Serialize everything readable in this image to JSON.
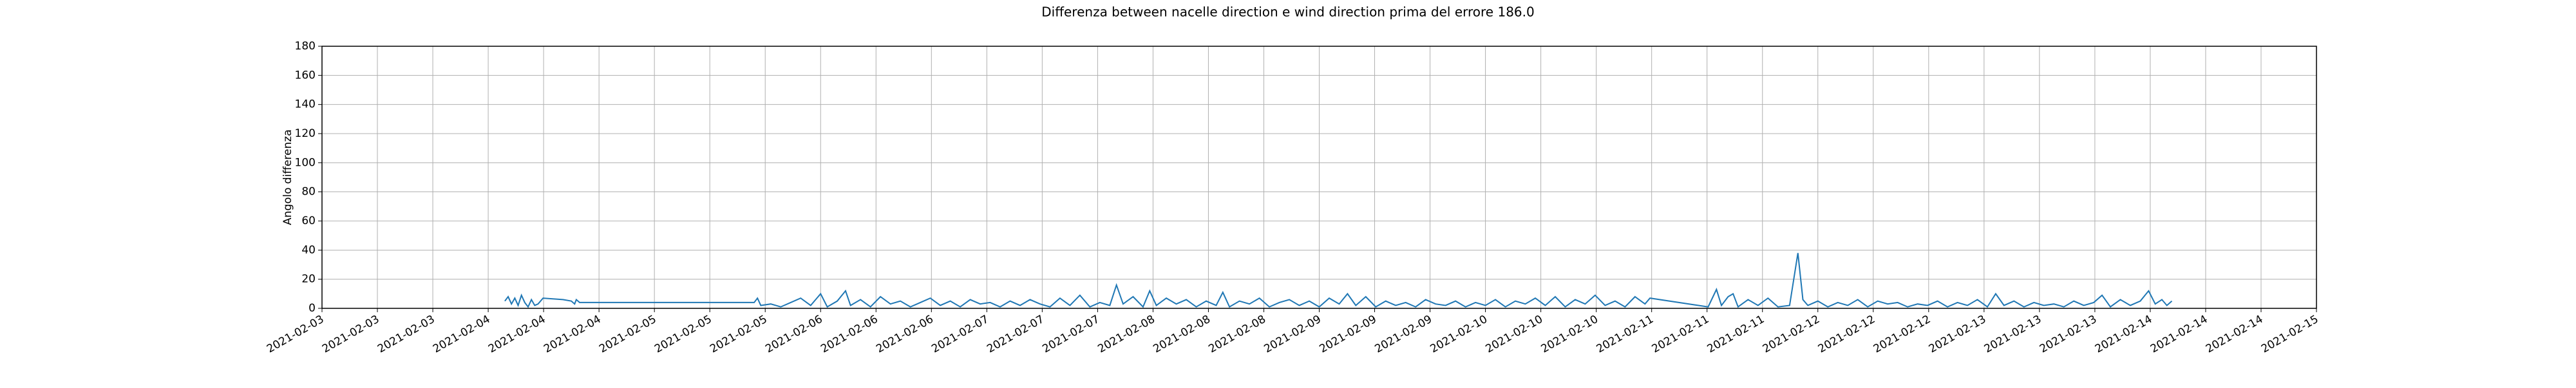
{
  "chart_data": {
    "type": "line",
    "title": "Differenza between nacelle direction e wind direction prima del errore 186.0",
    "ylabel": "Angolo differenza",
    "grid": true,
    "xlim": [
      3,
      15
    ],
    "ylim": [
      0,
      180
    ],
    "yticks": [
      0,
      20,
      40,
      60,
      80,
      100,
      120,
      140,
      160,
      180
    ],
    "xticks": [
      {
        "value": 3,
        "label": "2021-02-03"
      },
      {
        "value": 3.3333,
        "label": "2021-02-03"
      },
      {
        "value": 3.6667,
        "label": "2021-02-03"
      },
      {
        "value": 4,
        "label": "2021-02-04"
      },
      {
        "value": 4.3333,
        "label": "2021-02-04"
      },
      {
        "value": 4.6667,
        "label": "2021-02-04"
      },
      {
        "value": 5,
        "label": "2021-02-05"
      },
      {
        "value": 5.3333,
        "label": "2021-02-05"
      },
      {
        "value": 5.6667,
        "label": "2021-02-05"
      },
      {
        "value": 6,
        "label": "2021-02-06"
      },
      {
        "value": 6.3333,
        "label": "2021-02-06"
      },
      {
        "value": 6.6667,
        "label": "2021-02-06"
      },
      {
        "value": 7,
        "label": "2021-02-07"
      },
      {
        "value": 7.3333,
        "label": "2021-02-07"
      },
      {
        "value": 7.6667,
        "label": "2021-02-07"
      },
      {
        "value": 8,
        "label": "2021-02-08"
      },
      {
        "value": 8.3333,
        "label": "2021-02-08"
      },
      {
        "value": 8.6667,
        "label": "2021-02-08"
      },
      {
        "value": 9,
        "label": "2021-02-09"
      },
      {
        "value": 9.3333,
        "label": "2021-02-09"
      },
      {
        "value": 9.6667,
        "label": "2021-02-09"
      },
      {
        "value": 10,
        "label": "2021-02-10"
      },
      {
        "value": 10.3333,
        "label": "2021-02-10"
      },
      {
        "value": 10.6667,
        "label": "2021-02-10"
      },
      {
        "value": 11,
        "label": "2021-02-11"
      },
      {
        "value": 11.3333,
        "label": "2021-02-11"
      },
      {
        "value": 11.6667,
        "label": "2021-02-11"
      },
      {
        "value": 12,
        "label": "2021-02-12"
      },
      {
        "value": 12.3333,
        "label": "2021-02-12"
      },
      {
        "value": 12.6667,
        "label": "2021-02-12"
      },
      {
        "value": 13,
        "label": "2021-02-13"
      },
      {
        "value": 13.3333,
        "label": "2021-02-13"
      },
      {
        "value": 13.6667,
        "label": "2021-02-13"
      },
      {
        "value": 14,
        "label": "2021-02-14"
      },
      {
        "value": 14.3333,
        "label": "2021-02-14"
      },
      {
        "value": 14.6667,
        "label": "2021-02-14"
      },
      {
        "value": 15,
        "label": "2021-02-15"
      }
    ],
    "x": [
      4.1,
      4.12,
      4.14,
      4.16,
      4.18,
      4.2,
      4.22,
      4.24,
      4.26,
      4.28,
      4.3,
      4.33,
      4.45,
      4.5,
      4.52,
      4.53,
      4.55,
      5.6,
      5.62,
      5.64,
      5.7,
      5.76,
      5.82,
      5.88,
      5.94,
      6.0,
      6.04,
      6.1,
      6.15,
      6.18,
      6.24,
      6.3,
      6.36,
      6.42,
      6.48,
      6.54,
      6.6,
      6.66,
      6.72,
      6.78,
      6.84,
      6.9,
      6.96,
      7.02,
      7.08,
      7.14,
      7.2,
      7.26,
      7.32,
      7.38,
      7.44,
      7.5,
      7.56,
      7.62,
      7.68,
      7.74,
      7.78,
      7.82,
      7.88,
      7.94,
      7.98,
      8.02,
      8.08,
      8.14,
      8.2,
      8.26,
      8.32,
      8.38,
      8.42,
      8.46,
      8.52,
      8.58,
      8.64,
      8.7,
      8.76,
      8.82,
      8.88,
      8.94,
      9.0,
      9.06,
      9.12,
      9.17,
      9.22,
      9.28,
      9.34,
      9.4,
      9.46,
      9.52,
      9.58,
      9.64,
      9.7,
      9.76,
      9.82,
      9.88,
      9.94,
      10.0,
      10.06,
      10.12,
      10.18,
      10.24,
      10.3,
      10.36,
      10.42,
      10.48,
      10.54,
      10.6,
      10.66,
      10.72,
      10.78,
      10.84,
      10.9,
      10.96,
      10.99,
      11.34,
      11.39,
      11.42,
      11.46,
      11.49,
      11.52,
      11.58,
      11.64,
      11.7,
      11.76,
      11.83,
      11.88,
      11.91,
      11.94,
      12.0,
      12.06,
      12.12,
      12.18,
      12.24,
      12.3,
      12.36,
      12.42,
      12.48,
      12.54,
      12.6,
      12.66,
      12.72,
      12.78,
      12.84,
      12.9,
      12.96,
      13.02,
      13.07,
      13.12,
      13.18,
      13.24,
      13.3,
      13.36,
      13.42,
      13.48,
      13.54,
      13.6,
      13.66,
      13.71,
      13.76,
      13.82,
      13.88,
      13.94,
      13.99,
      14.03,
      14.07,
      14.1,
      14.13
    ],
    "series": [
      {
        "color": "#1f77b4",
        "values": [
          5,
          8,
          3,
          7,
          2,
          9,
          4,
          1,
          6,
          2,
          3,
          7,
          6,
          5,
          3,
          6,
          4,
          4,
          7,
          2,
          3,
          1,
          4,
          7,
          2,
          10,
          1,
          5,
          12,
          2,
          6,
          1,
          8,
          3,
          5,
          1,
          4,
          7,
          2,
          5,
          1,
          6,
          3,
          4,
          1,
          5,
          2,
          6,
          3,
          1,
          7,
          2,
          9,
          1,
          4,
          2,
          16,
          3,
          8,
          1,
          12,
          2,
          7,
          3,
          6,
          1,
          5,
          2,
          11,
          1,
          5,
          3,
          7,
          1,
          4,
          6,
          2,
          5,
          1,
          7,
          3,
          10,
          2,
          8,
          1,
          5,
          2,
          4,
          1,
          6,
          3,
          2,
          5,
          1,
          4,
          2,
          6,
          1,
          5,
          3,
          7,
          2,
          8,
          1,
          6,
          3,
          9,
          2,
          5,
          1,
          8,
          3,
          7,
          1,
          13,
          2,
          8,
          10,
          1,
          6,
          2,
          7,
          1,
          2,
          38,
          6,
          2,
          5,
          1,
          4,
          2,
          6,
          1,
          5,
          3,
          4,
          1,
          3,
          2,
          5,
          1,
          4,
          2,
          6,
          1,
          10,
          2,
          5,
          1,
          4,
          2,
          3,
          1,
          5,
          2,
          4,
          9,
          1,
          6,
          2,
          5,
          12,
          3,
          6,
          2,
          5
        ]
      }
    ]
  }
}
